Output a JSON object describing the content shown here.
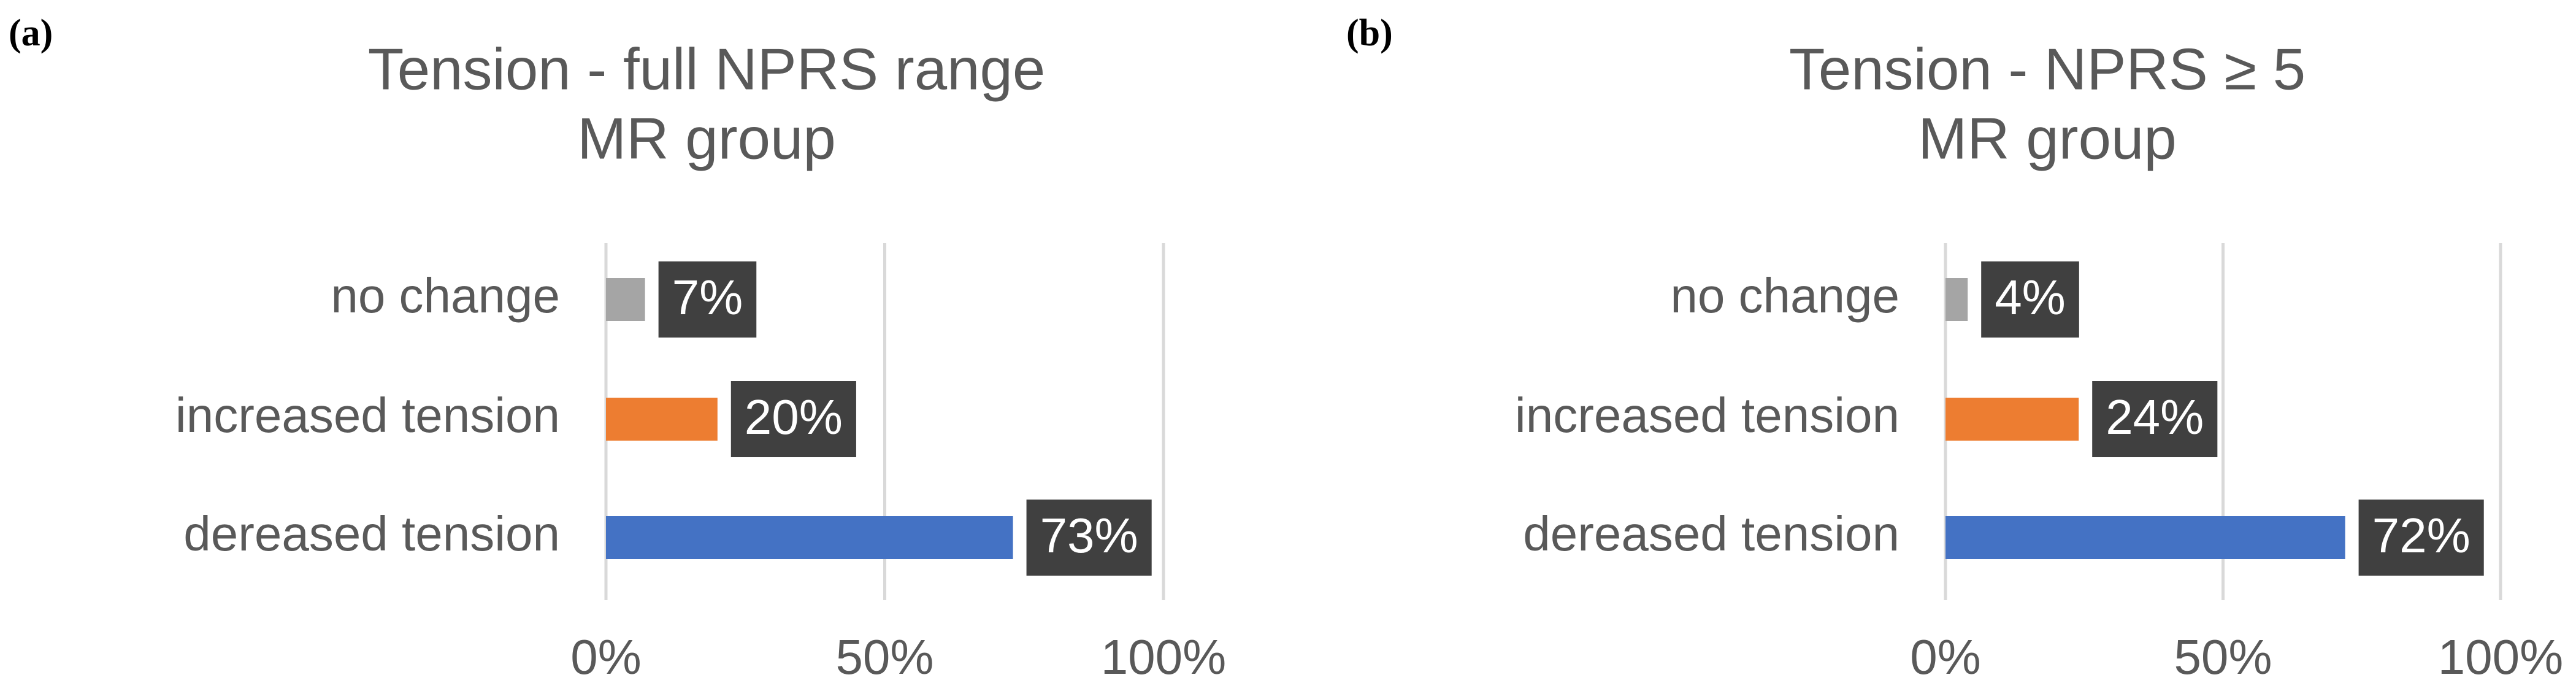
{
  "chart_data": [
    {
      "type": "bar",
      "panel_label": "(a)",
      "title": "Tension - full NPRS range",
      "subtitle": "MR group",
      "categories": [
        "no change",
        "increased tension",
        "dereased tension"
      ],
      "values": [
        7,
        20,
        73
      ],
      "value_labels": [
        "7%",
        "20%",
        "73%"
      ],
      "colors": [
        "#a5a5a5",
        "#ed7d31",
        "#4472c4"
      ],
      "xlim": [
        0,
        100
      ],
      "xticks": [
        {
          "value": 0,
          "label": "0%"
        },
        {
          "value": 50,
          "label": "50%"
        },
        {
          "value": 100,
          "label": "100%"
        }
      ],
      "grid": true
    },
    {
      "type": "bar",
      "panel_label": "(b)",
      "title": "Tension - NPRS ≥ 5",
      "subtitle": "MR group",
      "categories": [
        "no change",
        "increased tension",
        "dereased tension"
      ],
      "values": [
        4,
        24,
        72
      ],
      "value_labels": [
        "4%",
        "24%",
        "72%"
      ],
      "colors": [
        "#a5a5a5",
        "#ed7d31",
        "#4472c4"
      ],
      "xlim": [
        0,
        100
      ],
      "xticks": [
        {
          "value": 0,
          "label": "0%"
        },
        {
          "value": 50,
          "label": "50%"
        },
        {
          "value": 100,
          "label": "100%"
        }
      ],
      "grid": true
    }
  ]
}
